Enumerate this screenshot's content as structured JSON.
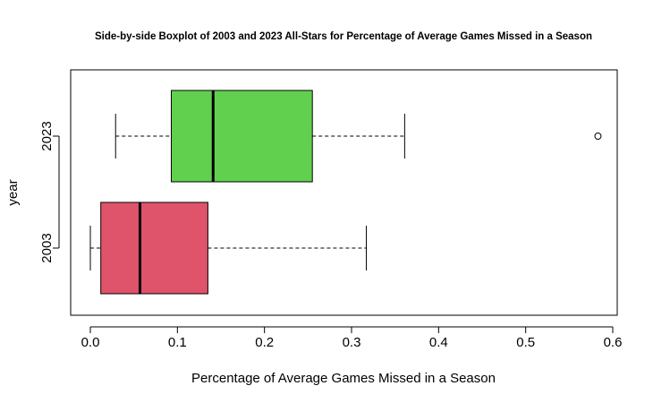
{
  "chart_data": {
    "type": "boxplot",
    "orientation": "horizontal",
    "title": "Side-by-side Boxplot of 2003 and 2023 All-Stars for Percentage of Average Games Missed in a Season",
    "xlabel": "Percentage of Average Games Missed in a Season",
    "ylabel": "year",
    "xlim": [
      0,
      0.6
    ],
    "x_ticks": [
      "0.0",
      "0.1",
      "0.2",
      "0.3",
      "0.4",
      "0.5",
      "0.6"
    ],
    "categories": [
      "2003",
      "2023"
    ],
    "series": [
      {
        "category": "2003",
        "color": "#DF536B",
        "whisker_low": 0.0,
        "q1": 0.012,
        "median": 0.057,
        "q3": 0.135,
        "whisker_high": 0.317,
        "outliers": []
      },
      {
        "category": "2023",
        "color": "#61D04F",
        "whisker_low": 0.029,
        "q1": 0.093,
        "median": 0.141,
        "q3": 0.255,
        "whisker_high": 0.361,
        "outliers": [
          0.583
        ]
      }
    ],
    "grid": false,
    "legend": "none"
  }
}
